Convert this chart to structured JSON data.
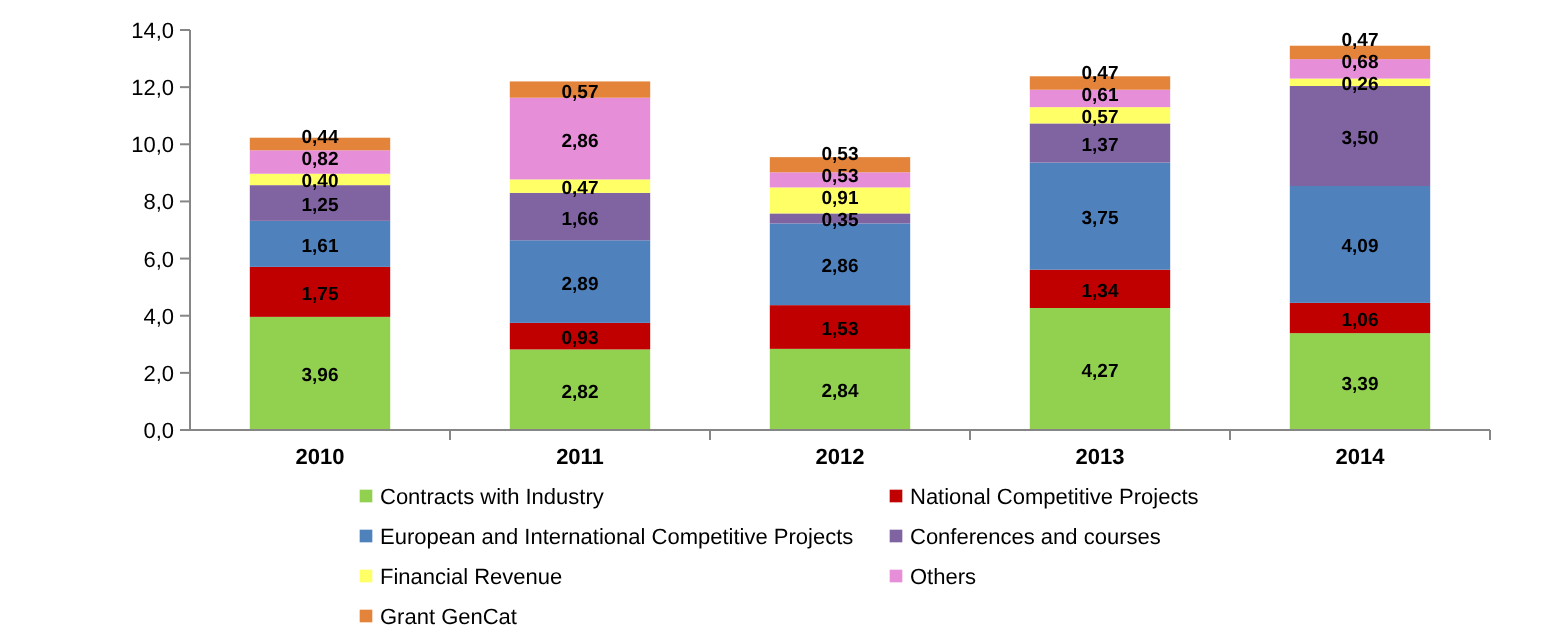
{
  "chart_data": {
    "type": "bar",
    "stacked": true,
    "categories": [
      "2010",
      "2011",
      "2012",
      "2013",
      "2014"
    ],
    "series": [
      {
        "name": "Contracts with Industry",
        "color": "#92d050",
        "values": [
          3.96,
          2.82,
          2.84,
          4.27,
          3.39
        ]
      },
      {
        "name": "National Competitive Projects",
        "color": "#c00000",
        "values": [
          1.75,
          0.93,
          1.53,
          1.34,
          1.06
        ]
      },
      {
        "name": "European and International Competitive Projects",
        "color": "#4f81bd",
        "values": [
          1.61,
          2.89,
          2.86,
          3.75,
          4.09
        ]
      },
      {
        "name": "Conferences and courses",
        "color": "#8064a2",
        "values": [
          1.25,
          1.66,
          0.35,
          1.37,
          3.5
        ]
      },
      {
        "name": "Financial Revenue",
        "color": "#ffff66",
        "values": [
          0.4,
          0.47,
          0.91,
          0.57,
          0.26
        ]
      },
      {
        "name": "Others",
        "color": "#e68fd8",
        "values": [
          0.82,
          2.86,
          0.53,
          0.61,
          0.68
        ]
      },
      {
        "name": "Grant GenCat",
        "color": "#e4843a",
        "values": [
          0.44,
          0.57,
          0.53,
          0.47,
          0.47
        ]
      }
    ],
    "ylim": [
      0,
      14
    ],
    "yticks": [
      {
        "value": 0,
        "label": "0,0"
      },
      {
        "value": 2,
        "label": "2,0"
      },
      {
        "value": 4,
        "label": "4,0"
      },
      {
        "value": 6,
        "label": "6,0"
      },
      {
        "value": 8,
        "label": "8,0"
      },
      {
        "value": 10,
        "label": "10,0"
      },
      {
        "value": 12,
        "label": "12,0"
      },
      {
        "value": 14,
        "label": "14,0"
      }
    ],
    "value_labels": [
      [
        "3,96",
        "2,82",
        "2,84",
        "4,27",
        "3,39"
      ],
      [
        "1,75",
        "0,93",
        "1,53",
        "1,34",
        "1,06"
      ],
      [
        "1,61",
        "2,89",
        "2,86",
        "3,75",
        "4,09"
      ],
      [
        "1,25",
        "1,66",
        "0,35",
        "1,37",
        "3,50"
      ],
      [
        "0,40",
        "0,47",
        "0,91",
        "0,57",
        "0,26"
      ],
      [
        "0,82",
        "2,86",
        "0,53",
        "0,61",
        "0,68"
      ],
      [
        "0,44",
        "0,57",
        "0,53",
        "0,47",
        "0,47"
      ]
    ],
    "legend": "bottom",
    "marker": "square",
    "grid": false
  }
}
